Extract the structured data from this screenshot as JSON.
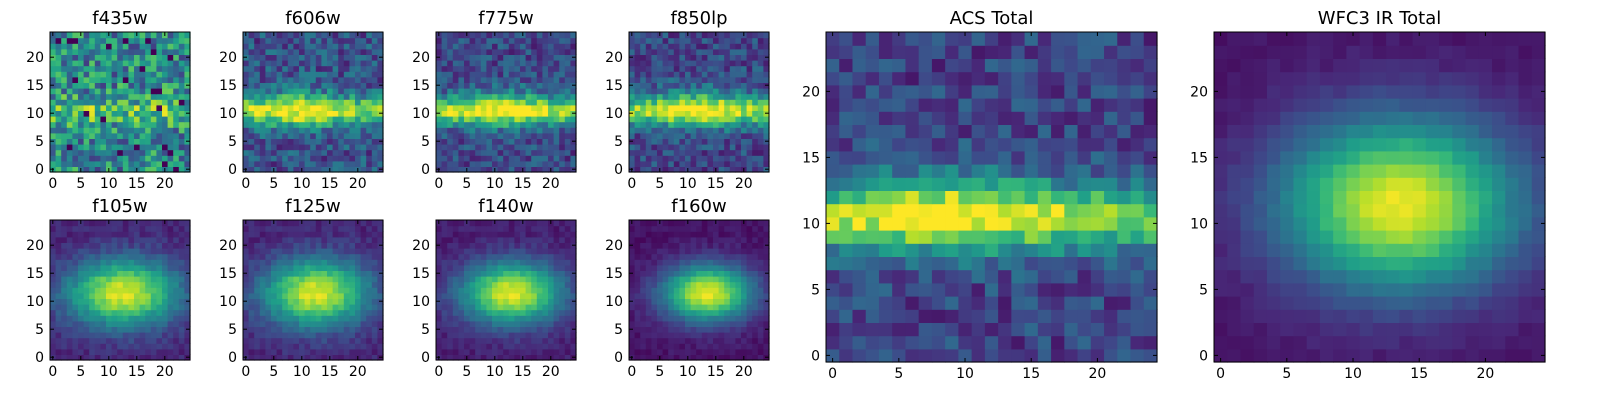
{
  "chart_data": [
    {
      "type": "heatmap",
      "title": "f435w",
      "model": "f435w",
      "xlim": [
        0,
        24
      ],
      "ylim": [
        0,
        24
      ],
      "xticks": [
        0,
        5,
        10,
        15,
        20
      ],
      "yticks": [
        0,
        5,
        10,
        15,
        20
      ],
      "colormap": "viridis"
    },
    {
      "type": "heatmap",
      "title": "f606w",
      "model": "f606w",
      "xlim": [
        0,
        24
      ],
      "ylim": [
        0,
        24
      ],
      "xticks": [
        0,
        5,
        10,
        15,
        20
      ],
      "yticks": [
        0,
        5,
        10,
        15,
        20
      ],
      "colormap": "viridis"
    },
    {
      "type": "heatmap",
      "title": "f775w",
      "model": "f775w",
      "xlim": [
        0,
        24
      ],
      "ylim": [
        0,
        24
      ],
      "xticks": [
        0,
        5,
        10,
        15,
        20
      ],
      "yticks": [
        0,
        5,
        10,
        15,
        20
      ],
      "colormap": "viridis"
    },
    {
      "type": "heatmap",
      "title": "f850lp",
      "model": "f850lp",
      "xlim": [
        0,
        24
      ],
      "ylim": [
        0,
        24
      ],
      "xticks": [
        0,
        5,
        10,
        15,
        20
      ],
      "yticks": [
        0,
        5,
        10,
        15,
        20
      ],
      "colormap": "viridis"
    },
    {
      "type": "heatmap",
      "title": "f105w",
      "model": "f105w",
      "xlim": [
        0,
        24
      ],
      "ylim": [
        0,
        24
      ],
      "xticks": [
        0,
        5,
        10,
        15,
        20
      ],
      "yticks": [
        0,
        5,
        10,
        15,
        20
      ],
      "colormap": "viridis"
    },
    {
      "type": "heatmap",
      "title": "f125w",
      "model": "f125w",
      "xlim": [
        0,
        24
      ],
      "ylim": [
        0,
        24
      ],
      "xticks": [
        0,
        5,
        10,
        15,
        20
      ],
      "yticks": [
        0,
        5,
        10,
        15,
        20
      ],
      "colormap": "viridis"
    },
    {
      "type": "heatmap",
      "title": "f140w",
      "model": "f140w",
      "xlim": [
        0,
        24
      ],
      "ylim": [
        0,
        24
      ],
      "xticks": [
        0,
        5,
        10,
        15,
        20
      ],
      "yticks": [
        0,
        5,
        10,
        15,
        20
      ],
      "colormap": "viridis"
    },
    {
      "type": "heatmap",
      "title": "f160w",
      "model": "f160w",
      "xlim": [
        0,
        24
      ],
      "ylim": [
        0,
        24
      ],
      "xticks": [
        0,
        5,
        10,
        15,
        20
      ],
      "yticks": [
        0,
        5,
        10,
        15,
        20
      ],
      "colormap": "viridis"
    },
    {
      "type": "heatmap",
      "title": "ACS Total",
      "model": "acs_total",
      "xlim": [
        0,
        24
      ],
      "ylim": [
        0,
        24
      ],
      "xticks": [
        0,
        5,
        10,
        15,
        20
      ],
      "yticks": [
        0,
        5,
        10,
        15,
        20
      ],
      "colormap": "viridis"
    },
    {
      "type": "heatmap",
      "title": "WFC3 IR Total",
      "model": "wfc3_total",
      "xlim": [
        0,
        24
      ],
      "ylim": [
        0,
        24
      ],
      "xticks": [
        0,
        5,
        10,
        15,
        20
      ],
      "yticks": [
        0,
        5,
        10,
        15,
        20
      ],
      "colormap": "viridis"
    }
  ]
}
